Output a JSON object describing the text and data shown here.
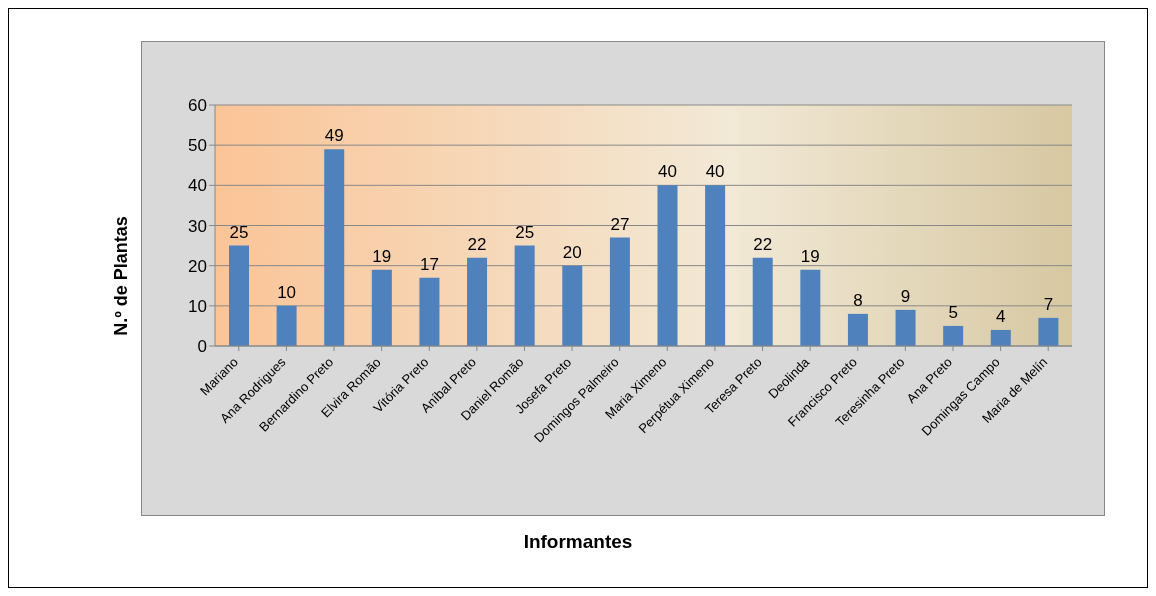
{
  "chart_data": {
    "type": "bar",
    "xlabel": "Informantes",
    "ylabel": "N.º de Plantas",
    "categories": [
      "Mariano",
      "Ana Rodrigues",
      "Bernardino Preto",
      "Elvira Romão",
      "Vitória Preto",
      "Aníbal Preto",
      "Daniel Romão",
      "Josefa Preto",
      "Domingos Palmeiro",
      "Maria Ximeno",
      "Perpétua Ximeno",
      "Teresa Preto",
      "Deolinda",
      "Francisco Preto",
      "Teresinha Preto",
      "Ana Preto",
      "Domingas Campo",
      "Maria de Melín"
    ],
    "values": [
      25,
      10,
      49,
      19,
      17,
      22,
      25,
      20,
      27,
      40,
      40,
      22,
      19,
      8,
      9,
      5,
      4,
      7
    ],
    "color": "#4f81bd",
    "ylim": [
      0,
      60
    ],
    "yticks": [
      0,
      10,
      20,
      30,
      40,
      50,
      60
    ],
    "grid": "y",
    "data_labels": true
  }
}
